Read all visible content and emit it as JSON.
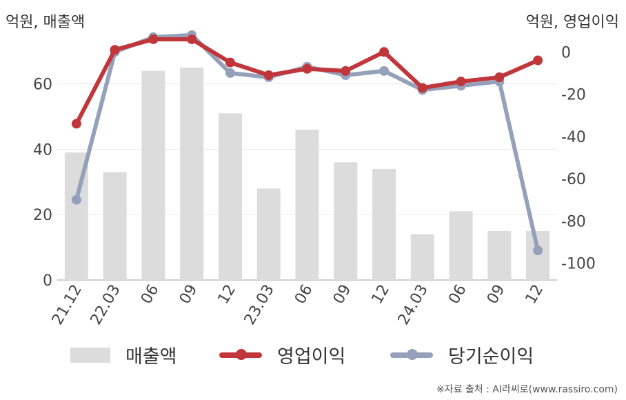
{
  "header": {
    "left_unit": "억원, 매출액",
    "right_unit": "억원, 영업이익"
  },
  "chart_data": {
    "type": "bar",
    "categories": [
      "21.12",
      "22.03",
      "06",
      "09",
      "12",
      "23.03",
      "06",
      "09",
      "12",
      "24.03",
      "06",
      "09",
      "12"
    ],
    "y_left": {
      "ticks": [
        0,
        20,
        40,
        60
      ],
      "range": [
        0,
        73
      ]
    },
    "y_right": {
      "ticks": [
        0,
        -20,
        -40,
        -60,
        -80,
        -100
      ],
      "range": [
        -108,
        5
      ]
    },
    "series": [
      {
        "name": "매출액",
        "type": "bar",
        "axis": "left",
        "color": "#dcdcdc",
        "values": [
          39,
          33,
          64,
          65,
          51,
          28,
          46,
          36,
          34,
          14,
          21,
          15,
          15
        ]
      },
      {
        "name": "영업이익",
        "type": "line",
        "axis": "right",
        "color": "#c0363a",
        "values": [
          -34,
          1,
          6,
          6,
          -5,
          -11,
          -8,
          -9,
          0,
          -17,
          -14,
          -12,
          -4
        ]
      },
      {
        "name": "당기순이익",
        "type": "line",
        "axis": "right",
        "color": "#95a1bb",
        "values": [
          -70,
          0,
          7,
          8,
          -10,
          -12,
          -7,
          -11,
          -9,
          -18,
          -16,
          -14,
          -94
        ]
      }
    ],
    "grid": true,
    "legend_position": "bottom"
  },
  "footer": {
    "source": "※자료 출처 : AI라씨로(www.rassiro.com)"
  }
}
